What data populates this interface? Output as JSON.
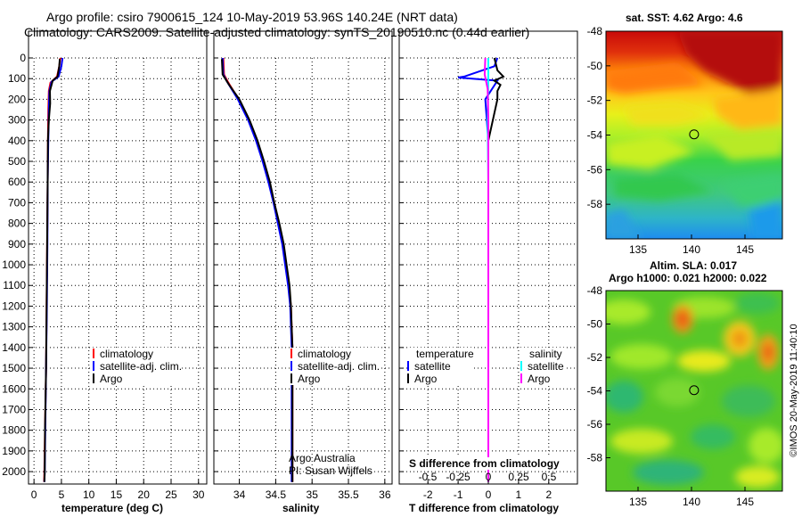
{
  "title_line1": "Argo profile: csiro 7900615_124 10-May-2019 53.96S 140.24E (NRT data)",
  "title_line2": "Climatology: CARS2009. Satellite-adjusted climatology: synTS_20190510.nc (0.44d earlier)",
  "credits": {
    "line1": "Argo Australia",
    "line2": "PI: Susan Wijffels"
  },
  "imos_stamp": "©IMOS 20-May-2019 11:40:10",
  "colors": {
    "climatology": "#ff0000",
    "satellite": "#0000ff",
    "argo": "#000000",
    "sal_satellite": "#00ffff",
    "sal_argo": "#ff00ff"
  },
  "chart_data": [
    {
      "type": "line",
      "id": "temperature",
      "xlabel": "temperature (deg C)",
      "xlim": [
        -1,
        31.5
      ],
      "xticks": [
        0,
        5,
        10,
        15,
        20,
        25,
        30
      ],
      "xtick_labels": [
        "0",
        "5",
        "10",
        "15",
        "20",
        "25",
        "30"
      ],
      "ylim": [
        2060,
        0
      ],
      "yticks": [
        0,
        100,
        200,
        300,
        400,
        500,
        600,
        700,
        800,
        900,
        1000,
        1100,
        1200,
        1300,
        1400,
        1500,
        1600,
        1700,
        1800,
        1900,
        2000
      ],
      "ytick_labels": [
        "0",
        "100",
        "200",
        "300",
        "400",
        "500",
        "600",
        "700",
        "800",
        "900",
        "1000",
        "1100",
        "1200",
        "1300",
        "1400",
        "1500",
        "1600",
        "1700",
        "1800",
        "1900",
        "2000"
      ],
      "legend": [
        "climatology",
        "satellite-adj. clim.",
        "Argo"
      ],
      "series": [
        {
          "name": "climatology",
          "color": "#ff0000",
          "points": [
            [
              4.8,
              0
            ],
            [
              4.6,
              40
            ],
            [
              4.2,
              90
            ],
            [
              3.0,
              120
            ],
            [
              2.7,
              160
            ],
            [
              2.6,
              250
            ],
            [
              2.55,
              400
            ],
            [
              2.5,
              600
            ],
            [
              2.4,
              900
            ],
            [
              2.3,
              1200
            ],
            [
              2.2,
              1500
            ],
            [
              2.0,
              1800
            ],
            [
              1.9,
              2000
            ],
            [
              1.85,
              2050
            ]
          ]
        },
        {
          "name": "satellite-adj. clim.",
          "color": "#0000ff",
          "points": [
            [
              5.2,
              0
            ],
            [
              5.0,
              40
            ],
            [
              4.5,
              90
            ],
            [
              3.2,
              115
            ],
            [
              2.8,
              160
            ],
            [
              2.7,
              250
            ],
            [
              2.6,
              400
            ],
            [
              2.5,
              600
            ],
            [
              2.45,
              900
            ],
            [
              2.35,
              1200
            ],
            [
              2.2,
              1500
            ],
            [
              2.05,
              1800
            ],
            [
              1.95,
              2000
            ],
            [
              1.9,
              2050
            ]
          ]
        },
        {
          "name": "Argo",
          "color": "#000000",
          "points": [
            [
              4.7,
              5
            ],
            [
              4.6,
              40
            ],
            [
              4.3,
              90
            ],
            [
              3.4,
              110
            ],
            [
              2.9,
              160
            ],
            [
              2.95,
              220
            ],
            [
              2.7,
              300
            ],
            [
              2.55,
              400
            ],
            [
              2.5,
              600
            ],
            [
              2.4,
              900
            ],
            [
              2.3,
              1200
            ],
            [
              2.2,
              1500
            ],
            [
              2.0,
              1800
            ],
            [
              1.95,
              2000
            ],
            [
              1.9,
              2050
            ]
          ]
        }
      ]
    },
    {
      "type": "line",
      "id": "salinity",
      "xlabel": "salinity",
      "xlim": [
        33.65,
        36.1
      ],
      "xticks": [
        34,
        34.5,
        35,
        35.5,
        36
      ],
      "xtick_labels": [
        "34",
        "34.5",
        "35",
        "35.5",
        "36"
      ],
      "ylim": [
        2060,
        0
      ],
      "legend": [
        "climatology",
        "satellite-adj. clim.",
        "Argo"
      ],
      "series": [
        {
          "name": "climatology",
          "color": "#ff0000",
          "points": [
            [
              33.78,
              0
            ],
            [
              33.79,
              80
            ],
            [
              33.85,
              120
            ],
            [
              33.99,
              200
            ],
            [
              34.13,
              300
            ],
            [
              34.24,
              400
            ],
            [
              34.33,
              500
            ],
            [
              34.41,
              600
            ],
            [
              34.48,
              700
            ],
            [
              34.54,
              800
            ],
            [
              34.6,
              900
            ],
            [
              34.64,
              1000
            ],
            [
              34.68,
              1100
            ],
            [
              34.71,
              1200
            ],
            [
              34.72,
              1300
            ],
            [
              34.73,
              1400
            ],
            [
              34.73,
              1600
            ],
            [
              34.73,
              2050
            ]
          ]
        },
        {
          "name": "satellite-adj. clim.",
          "color": "#0000ff",
          "points": [
            [
              33.77,
              0
            ],
            [
              33.78,
              80
            ],
            [
              33.84,
              120
            ],
            [
              33.98,
              200
            ],
            [
              34.12,
              300
            ],
            [
              34.23,
              400
            ],
            [
              34.32,
              500
            ],
            [
              34.4,
              600
            ],
            [
              34.47,
              700
            ],
            [
              34.53,
              800
            ],
            [
              34.59,
              900
            ],
            [
              34.63,
              1000
            ],
            [
              34.67,
              1100
            ],
            [
              34.7,
              1200
            ],
            [
              34.71,
              1300
            ],
            [
              34.72,
              1400
            ],
            [
              34.72,
              1600
            ],
            [
              34.72,
              2050
            ]
          ]
        },
        {
          "name": "Argo",
          "color": "#000000",
          "points": [
            [
              33.76,
              5
            ],
            [
              33.77,
              80
            ],
            [
              33.86,
              130
            ],
            [
              34.0,
              200
            ],
            [
              34.14,
              300
            ],
            [
              34.25,
              400
            ],
            [
              34.34,
              500
            ],
            [
              34.42,
              600
            ],
            [
              34.48,
              700
            ],
            [
              34.55,
              800
            ],
            [
              34.61,
              900
            ],
            [
              34.65,
              1000
            ],
            [
              34.69,
              1100
            ],
            [
              34.71,
              1200
            ],
            [
              34.72,
              1300
            ],
            [
              34.73,
              1400
            ],
            [
              34.73,
              1600
            ],
            [
              34.73,
              2050
            ]
          ]
        }
      ]
    },
    {
      "type": "line",
      "id": "difference",
      "xlabel": "T difference from climatology",
      "xlim": [
        -2.95,
        2.95
      ],
      "xticks": [
        -2,
        -1,
        0,
        1,
        2
      ],
      "xtick_labels": [
        "-2",
        "-1",
        "0",
        "1",
        "2"
      ],
      "secondary_xlabel": "S difference from climatology",
      "secondary_xticks": [
        -0.5,
        -0.25,
        0,
        0.25,
        0.5
      ],
      "secondary_xtick_labels": [
        "-0.5",
        "-0.25",
        "0",
        "0.25",
        "0.5"
      ],
      "ylim": [
        2060,
        0
      ],
      "legend_temperature_title": "temperature",
      "legend_temperature": [
        "satellite",
        "Argo"
      ],
      "legend_salinity_title": "salinity",
      "legend_salinity": [
        "satellite",
        "Argo"
      ],
      "series": [
        {
          "name": "T satellite",
          "color": "#0000ff",
          "points": [
            [
              0.3,
              0
            ],
            [
              0.2,
              40
            ],
            [
              -0.8,
              90
            ],
            [
              -1.0,
              95
            ],
            [
              0.3,
              110
            ],
            [
              -0.1,
              200
            ],
            [
              0.0,
              400
            ],
            [
              0.0,
              1000
            ],
            [
              0.0,
              2050
            ]
          ]
        },
        {
          "name": "T Argo",
          "color": "#000000",
          "points": [
            [
              0.2,
              0
            ],
            [
              0.3,
              60
            ],
            [
              0.5,
              90
            ],
            [
              0.2,
              110
            ],
            [
              0.4,
              130
            ],
            [
              0.3,
              160
            ],
            [
              0.3,
              200
            ],
            [
              0.0,
              400
            ],
            [
              0.0,
              1000
            ],
            [
              0.0,
              2050
            ]
          ]
        },
        {
          "name": "S satellite",
          "color": "#00ffff",
          "points": [
            [
              0.0,
              0
            ],
            [
              0.0,
              100
            ],
            [
              -0.02,
              300
            ],
            [
              0.0,
              600
            ],
            [
              0.0,
              1200
            ],
            [
              0.0,
              2050
            ]
          ]
        },
        {
          "name": "S Argo",
          "color": "#ff00ff",
          "points": [
            [
              -0.1,
              0
            ],
            [
              -0.12,
              80
            ],
            [
              -0.02,
              150
            ],
            [
              0.0,
              300
            ],
            [
              0.0,
              1000
            ],
            [
              0.0,
              2050
            ]
          ]
        }
      ]
    },
    {
      "type": "heatmap",
      "id": "sst_map",
      "title": "sat. SST: 4.62 Argo: 4.6",
      "xlim": [
        132,
        148.5
      ],
      "xticks": [
        135,
        140,
        145
      ],
      "xtick_labels": [
        "135",
        "140",
        "145"
      ],
      "ylim": [
        -60,
        -48
      ],
      "yticks": [
        -48,
        -50,
        -52,
        -54,
        -56,
        -58
      ],
      "ytick_labels": [
        "-48",
        "-50",
        "-52",
        "-54",
        "-56",
        "-58"
      ],
      "marker": [
        140.24,
        -53.96
      ]
    },
    {
      "type": "heatmap",
      "id": "sla_map",
      "title_line1": "Altim. SLA: 0.017",
      "title_line2": "Argo h1000: 0.021 h2000: 0.022",
      "xlim": [
        132,
        148.5
      ],
      "xticks": [
        135,
        140,
        145
      ],
      "xtick_labels": [
        "135",
        "140",
        "145"
      ],
      "ylim": [
        -60,
        -48
      ],
      "yticks": [
        -48,
        -50,
        -52,
        -54,
        -56,
        -58
      ],
      "ytick_labels": [
        "-48",
        "-50",
        "-52",
        "-54",
        "-56",
        "-58"
      ],
      "marker": [
        140.24,
        -53.96
      ]
    }
  ]
}
